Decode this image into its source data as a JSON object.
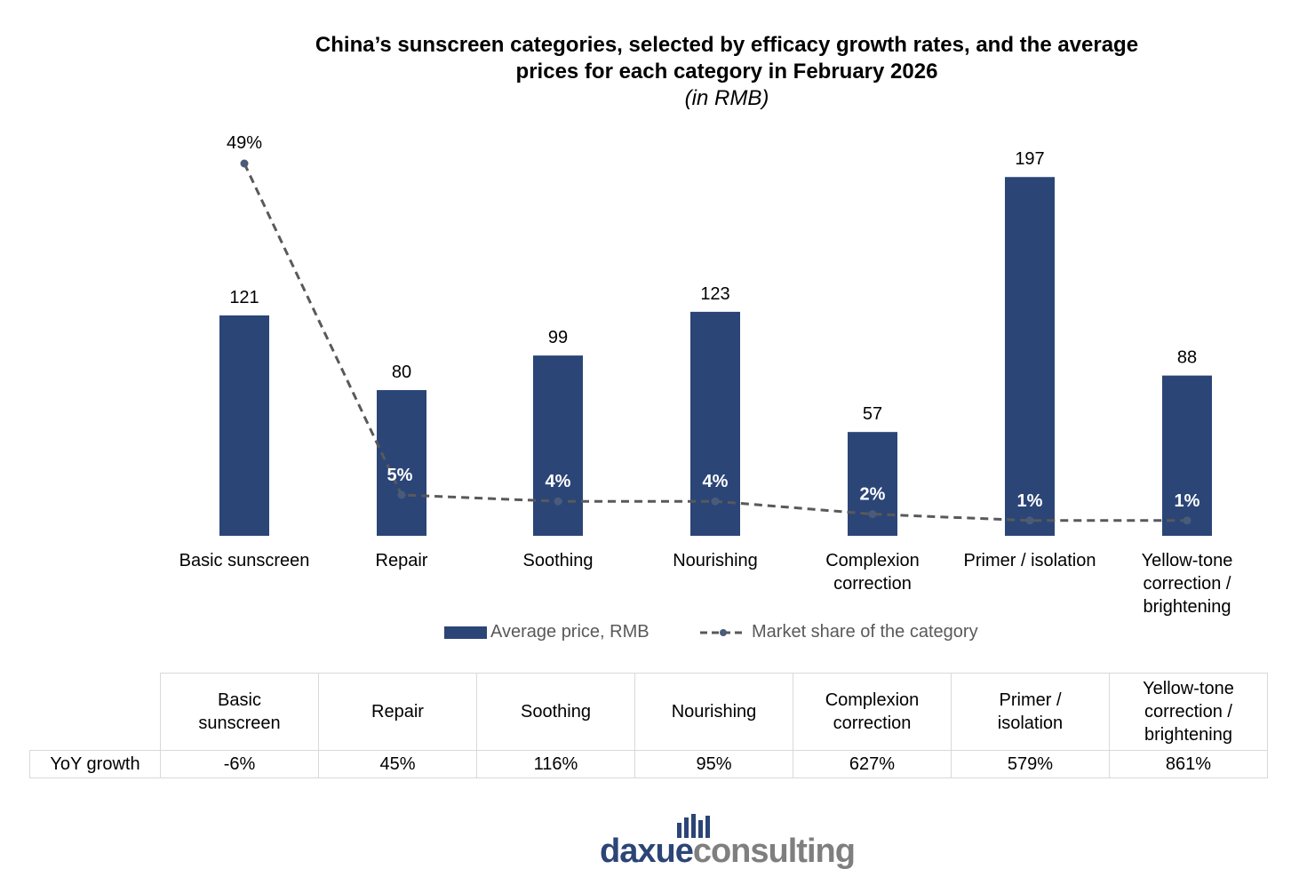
{
  "title": "China’s sunscreen categories, selected by efficacy growth rates, and the average prices for each category in February 2026",
  "subtitle": "(in RMB)",
  "colors": {
    "bar": "#2b4577",
    "line": "#595959",
    "marker": "#4a5b7a",
    "grid": "#d9d9d9"
  },
  "chart_data": {
    "type": "bar",
    "categories": [
      "Basic sunscreen",
      "Repair",
      "Soothing",
      "Nourishing",
      "Complexion correction",
      "Primer / isolation",
      "Yellow-tone correction / brightening"
    ],
    "category_lines": [
      [
        "Basic sunscreen"
      ],
      [
        "Repair"
      ],
      [
        "Soothing"
      ],
      [
        "Nourishing"
      ],
      [
        "Complexion",
        "correction"
      ],
      [
        "Primer / isolation"
      ],
      [
        "Yellow-tone",
        "correction /",
        "brightening"
      ]
    ],
    "series": [
      {
        "name": "Average price, RMB",
        "type": "bar",
        "values": [
          121,
          80,
          99,
          123,
          57,
          197,
          88
        ],
        "labels": [
          "121",
          "80",
          "99",
          "123",
          "57",
          "197",
          "88"
        ]
      },
      {
        "name": "Market share of the category",
        "type": "line",
        "style": "dashed",
        "values": [
          49,
          5,
          4,
          4,
          2,
          1,
          1
        ],
        "labels": [
          "49%",
          "5%",
          "4%",
          "4%",
          "2%",
          "1%",
          "1%"
        ]
      }
    ],
    "grid": false,
    "legend_position": "bottom"
  },
  "table": {
    "row_label": "YoY growth",
    "headers": [
      [
        "Basic",
        "sunscreen"
      ],
      [
        "Repair"
      ],
      [
        "Soothing"
      ],
      [
        "Nourishing"
      ],
      [
        "Complexion",
        "correction"
      ],
      [
        "Primer /",
        "isolation"
      ],
      [
        "Yellow-tone",
        "correction /",
        "brightening"
      ]
    ],
    "values": [
      "-6%",
      "45%",
      "116%",
      "95%",
      "627%",
      "579%",
      "861%"
    ]
  },
  "logo": {
    "text_dark": "daxue",
    "text_light": "consulting"
  }
}
